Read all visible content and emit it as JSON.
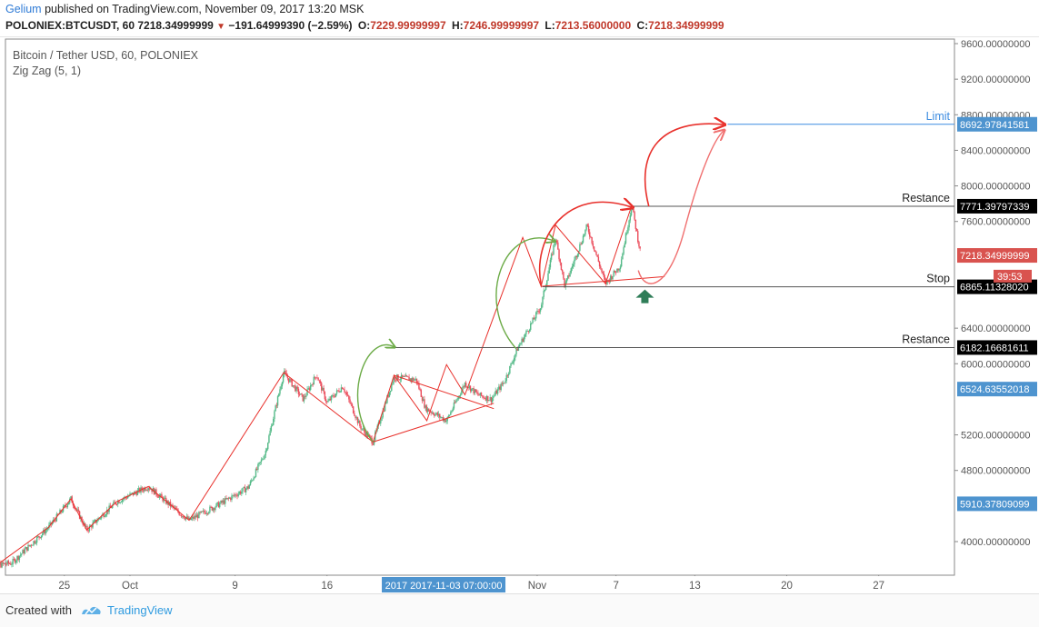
{
  "header": {
    "publisher": "Gelium",
    "published_text": "published on TradingView.com, November 09, 2017 13:20 MSK",
    "symbol": "POLONIEX:BTCUSDT, 60",
    "last": "7218.34999999",
    "change_arrow": "▼",
    "change": "−191.64999390 (−2.59%)",
    "o_label": "O:",
    "o_value": "7229.99999997",
    "h_label": "H:",
    "h_value": "7246.99999997",
    "l_label": "L:",
    "l_value": "7213.56000000",
    "c_label": "C:",
    "c_value": "7218.34999999"
  },
  "legend": {
    "title": "Bitcoin / Tether USD, 60, POLONIEX",
    "indicator": "Zig Zag (5, 1)"
  },
  "colors": {
    "up": "#53b987",
    "down": "#eb4d5c",
    "zigzag": "#e8302b",
    "green_arrow": "#6cab47",
    "red_arrow": "#e8302b",
    "level_line": "#555555",
    "limit_line": "#3d8ce0",
    "stop_marker": "#2f7d58",
    "price_label_bg": "#d9534f",
    "blue_label_bg": "#4e94cf",
    "black_label_bg": "#000000"
  },
  "chart_data": {
    "type": "candlestick",
    "title": "Bitcoin / Tether USD, 60, POLONIEX",
    "xlabel": "",
    "ylabel": "",
    "ylim": [
      3600,
      9800
    ],
    "y_ticks": [
      "9600.00000000",
      "9200.00000000",
      "8800.00000000",
      "8400.00000000",
      "8000.00000000",
      "7600.00000000",
      "6400.00000000",
      "6000.00000000",
      "5200.00000000",
      "4800.00000000",
      "4000.00000000"
    ],
    "x_ticks": [
      {
        "label": "25",
        "day": -5
      },
      {
        "label": "Oct",
        "day": 0
      },
      {
        "label": "9",
        "day": 8
      },
      {
        "label": "16",
        "day": 15
      },
      {
        "label": "Nov",
        "day": 31
      },
      {
        "label": "7",
        "day": 37
      },
      {
        "label": "13",
        "day": 43
      },
      {
        "label": "20",
        "day": 50
      },
      {
        "label": "27",
        "day": 57
      }
    ],
    "crosshair_x_label": {
      "text": "2017 2017-11-03 07:00:00",
      "day": 24.5
    },
    "price_path": [
      {
        "day": -11,
        "price": 3900
      },
      {
        "day": -10.2,
        "price": 3730
      },
      {
        "day": -9,
        "price": 3760
      },
      {
        "day": -6.2,
        "price": 4160
      },
      {
        "day": -4.5,
        "price": 4480
      },
      {
        "day": -3.3,
        "price": 4130
      },
      {
        "day": -1,
        "price": 4450
      },
      {
        "day": 1.4,
        "price": 4620
      },
      {
        "day": 3.6,
        "price": 4340
      },
      {
        "day": 4.5,
        "price": 4240
      },
      {
        "day": 6.8,
        "price": 4420
      },
      {
        "day": 9,
        "price": 4610
      },
      {
        "day": 10.3,
        "price": 5000
      },
      {
        "day": 11.7,
        "price": 5900
      },
      {
        "day": 13.2,
        "price": 5600
      },
      {
        "day": 14.2,
        "price": 5880
      },
      {
        "day": 15,
        "price": 5560
      },
      {
        "day": 16.2,
        "price": 5750
      },
      {
        "day": 17.5,
        "price": 5300
      },
      {
        "day": 18.5,
        "price": 5120
      },
      {
        "day": 20.1,
        "price": 5850
      },
      {
        "day": 21.8,
        "price": 5820
      },
      {
        "day": 22.5,
        "price": 5500
      },
      {
        "day": 24.1,
        "price": 5360
      },
      {
        "day": 25.5,
        "price": 5780
      },
      {
        "day": 26.5,
        "price": 5650
      },
      {
        "day": 27.5,
        "price": 5600
      },
      {
        "day": 28.5,
        "price": 5800
      },
      {
        "day": 29.5,
        "price": 6170
      },
      {
        "day": 31.3,
        "price": 6650
      },
      {
        "day": 32.4,
        "price": 7420
      },
      {
        "day": 33.1,
        "price": 6870
      },
      {
        "day": 34.8,
        "price": 7550
      },
      {
        "day": 36.2,
        "price": 6900
      },
      {
        "day": 37.3,
        "price": 7100
      },
      {
        "day": 38.2,
        "price": 7780
      },
      {
        "day": 38.9,
        "price": 7218
      }
    ],
    "zigzag": [
      {
        "day": -11,
        "price": 3920
      },
      {
        "day": -10.2,
        "price": 3730
      },
      {
        "day": -6.2,
        "price": 4160
      },
      {
        "day": -4.5,
        "price": 4480
      },
      {
        "day": -3.3,
        "price": 4130
      },
      {
        "day": -1,
        "price": 4450
      },
      {
        "day": 1.4,
        "price": 4620
      },
      {
        "day": 4.5,
        "price": 4240
      },
      {
        "day": 11.7,
        "price": 5900
      },
      {
        "day": 18.5,
        "price": 5120
      },
      {
        "day": 20.1,
        "price": 5870
      },
      {
        "day": 22.6,
        "price": 5360
      },
      {
        "day": 24.1,
        "price": 5990
      },
      {
        "day": 25.5,
        "price": 5650
      },
      {
        "day": 29.9,
        "price": 7420
      },
      {
        "day": 31.3,
        "price": 6870
      },
      {
        "day": 32.4,
        "price": 7560
      },
      {
        "day": 36.2,
        "price": 6900
      },
      {
        "day": 38.2,
        "price": 7780
      }
    ],
    "levels": [
      {
        "name": "Limit",
        "price": 8692.97841581,
        "label": "Limit",
        "price_label": "8692.97841581",
        "style": "limit",
        "x_start_day": 45.5
      },
      {
        "name": "Restance upper",
        "price": 7771.39797339,
        "label": "Restance",
        "price_label": "7771.39797339",
        "style": "black",
        "x_start_day": 38.2
      },
      {
        "name": "Stop",
        "price": 6865.1132802,
        "label": "Stop",
        "price_label": "6865.11328020",
        "style": "black",
        "x_start_day": 31.4
      },
      {
        "name": "Restance lower",
        "price": 6182.16681611,
        "label": "Restance",
        "price_label": "6182.16681611",
        "style": "black",
        "x_start_day": 20.1
      }
    ],
    "price_labels": [
      {
        "text": "7218.34999999",
        "price": 7218.35,
        "style": "red"
      },
      {
        "text": "39:53",
        "price": 6985,
        "style": "red_small"
      },
      {
        "text": "6524.63552018",
        "price": 5715,
        "style": "blue"
      },
      {
        "text": "5910.37809099",
        "price": 4425,
        "style": "blue"
      }
    ],
    "triangle": [
      {
        "from": {
          "day": 20.1,
          "price": 5870
        },
        "to": {
          "day": 27.7,
          "price": 5495
        }
      },
      {
        "from": {
          "day": 18.5,
          "price": 5120
        },
        "to": {
          "day": 27.7,
          "price": 5555
        }
      }
    ],
    "wedge": [
      {
        "from": {
          "day": 31.3,
          "price": 6870
        },
        "to": {
          "day": 40.7,
          "price": 6980
        }
      }
    ]
  },
  "footer": {
    "created_with": "Created with",
    "brand": "TradingView"
  }
}
